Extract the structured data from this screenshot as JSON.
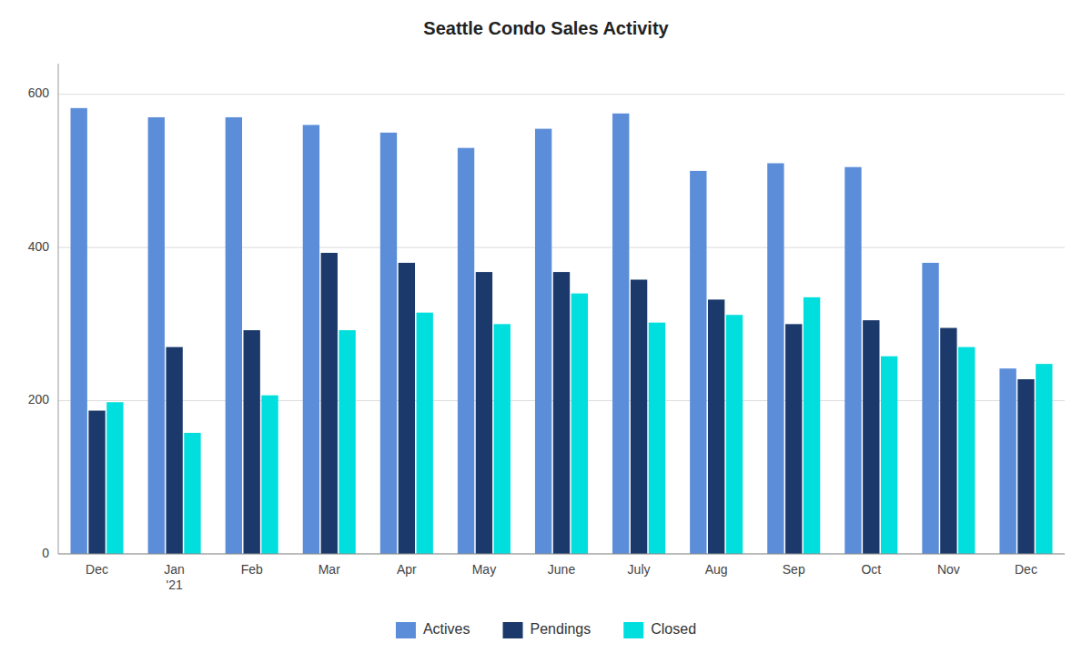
{
  "chart_data": {
    "type": "bar",
    "title": "Seattle Condo Sales Activity",
    "categories": [
      "Dec",
      "Jan\n'21",
      "Feb",
      "Mar",
      "Apr",
      "May",
      "June",
      "July",
      "Aug",
      "Sep",
      "Oct",
      "Nov",
      "Dec"
    ],
    "series": [
      {
        "name": "Actives",
        "color": "#5B8DD9",
        "values": [
          582,
          570,
          570,
          560,
          550,
          530,
          555,
          575,
          500,
          510,
          505,
          380,
          242
        ]
      },
      {
        "name": "Pendings",
        "color": "#1B3A6B",
        "values": [
          187,
          270,
          292,
          393,
          380,
          368,
          368,
          358,
          332,
          300,
          305,
          295,
          228
        ]
      },
      {
        "name": "Closed",
        "color": "#00DEDE",
        "values": [
          198,
          158,
          207,
          292,
          315,
          300,
          340,
          302,
          312,
          335,
          258,
          270,
          248
        ]
      }
    ],
    "ylim": [
      0,
      640
    ],
    "yticks": [
      0,
      200,
      400,
      600
    ],
    "grid": true,
    "legend": "bottom"
  }
}
